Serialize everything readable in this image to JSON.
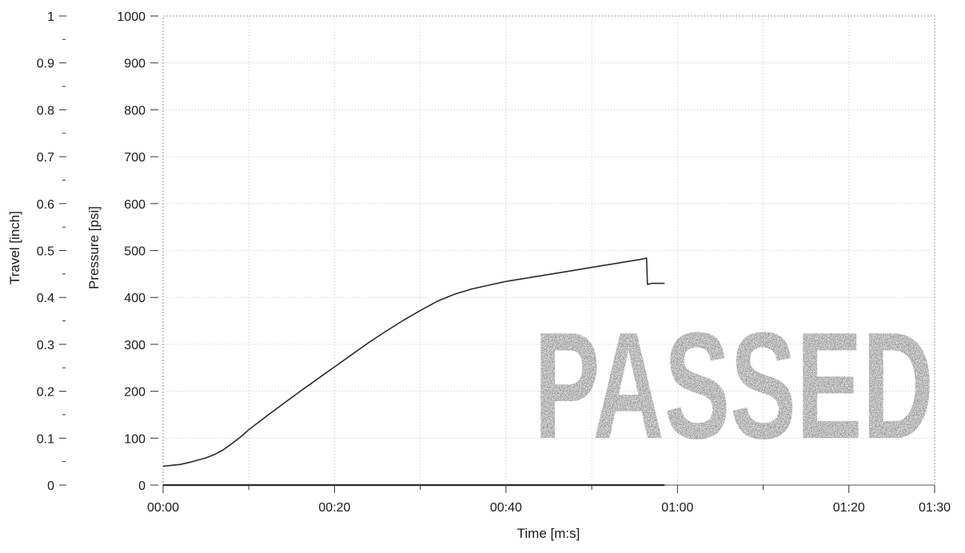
{
  "chart_data": {
    "type": "line",
    "title": "",
    "xlabel": "Time [m:s]",
    "ylabel_left": "Travel [inch]",
    "ylabel_right": "Pressure [psi]",
    "x_unit": "seconds",
    "xlim": [
      0,
      90
    ],
    "x_ticks": [
      {
        "value": 0,
        "label": "00:00"
      },
      {
        "value": 20,
        "label": "00:20"
      },
      {
        "value": 40,
        "label": "00:40"
      },
      {
        "value": 60,
        "label": "01:00"
      },
      {
        "value": 80,
        "label": "01:20"
      },
      {
        "value": 90,
        "label": "01:30"
      }
    ],
    "travel_axis": {
      "ylim": [
        0,
        1
      ],
      "ticks": [
        "0",
        "0.1",
        "0.2",
        "0.3",
        "0.4",
        "0.5",
        "0.6",
        "0.7",
        "0.8",
        "0.9",
        "1"
      ]
    },
    "pressure_axis": {
      "ylim": [
        0,
        1000
      ],
      "ticks": [
        "0",
        "100",
        "200",
        "300",
        "400",
        "500",
        "600",
        "700",
        "800",
        "900",
        "1000"
      ]
    },
    "grid": true,
    "series": [
      {
        "axis": "pressure",
        "color": "#2a2a2a",
        "x": [
          0,
          1,
          2,
          3,
          4,
          5,
          6,
          7,
          8,
          9,
          10,
          12,
          14,
          16,
          18,
          20,
          22,
          24,
          26,
          28,
          30,
          32,
          34,
          36,
          38,
          40,
          42,
          44,
          46,
          48,
          50,
          52,
          54,
          55,
          56,
          56.4,
          56.5,
          57,
          58,
          58.5
        ],
        "y": [
          40,
          42,
          44,
          48,
          53,
          58,
          65,
          75,
          88,
          102,
          118,
          146,
          173,
          200,
          226,
          252,
          278,
          304,
          328,
          351,
          372,
          392,
          407,
          418,
          426,
          434,
          440,
          446,
          452,
          458,
          464,
          470,
          476,
          479,
          482,
          484,
          428,
          430,
          430,
          430
        ]
      },
      {
        "axis": "travel",
        "color": "#2a2a2a",
        "x": [
          0,
          58.5
        ],
        "y": [
          0,
          0
        ]
      }
    ],
    "stamp": "PASSED"
  }
}
